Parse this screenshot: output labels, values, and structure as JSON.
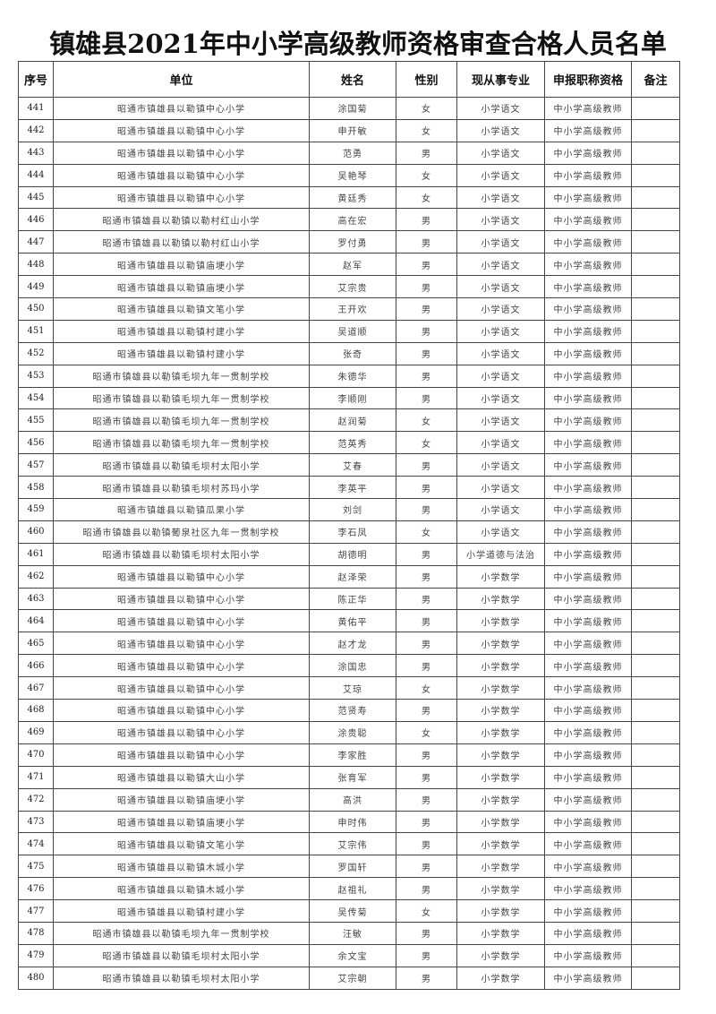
{
  "title": "镇雄县2021年中小学高级教师资格审查合格人员名单",
  "headers": [
    "序号",
    "单位",
    "姓名",
    "性别",
    "现从事专业",
    "申报职称资格",
    "备注"
  ],
  "rows": [
    [
      "441",
      "昭通市镇雄县以勒镇中心小学",
      "涂国菊",
      "女",
      "小学语文",
      "中小学高级教师",
      ""
    ],
    [
      "442",
      "昭通市镇雄县以勒镇中心小学",
      "申开敏",
      "女",
      "小学语文",
      "中小学高级教师",
      ""
    ],
    [
      "443",
      "昭通市镇雄县以勒镇中心小学",
      "范勇",
      "男",
      "小学语文",
      "中小学高级教师",
      ""
    ],
    [
      "444",
      "昭通市镇雄县以勒镇中心小学",
      "吴艳琴",
      "女",
      "小学语文",
      "中小学高级教师",
      ""
    ],
    [
      "445",
      "昭通市镇雄县以勒镇中心小学",
      "黄廷秀",
      "女",
      "小学语文",
      "中小学高级教师",
      ""
    ],
    [
      "446",
      "昭通市镇雄县以勒镇以勒村红山小学",
      "高在宏",
      "男",
      "小学语文",
      "中小学高级教师",
      ""
    ],
    [
      "447",
      "昭通市镇雄县以勒镇以勒村红山小学",
      "罗付勇",
      "男",
      "小学语文",
      "中小学高级教师",
      ""
    ],
    [
      "448",
      "昭通市镇雄县以勒镇庙埂小学",
      "赵军",
      "男",
      "小学语文",
      "中小学高级教师",
      ""
    ],
    [
      "449",
      "昭通市镇雄县以勒镇庙埂小学",
      "艾宗贵",
      "男",
      "小学语文",
      "中小学高级教师",
      ""
    ],
    [
      "450",
      "昭通市镇雄县以勒镇文笔小学",
      "王开欢",
      "男",
      "小学语文",
      "中小学高级教师",
      ""
    ],
    [
      "451",
      "昭通市镇雄县以勒镇村建小学",
      "吴道顺",
      "男",
      "小学语文",
      "中小学高级教师",
      ""
    ],
    [
      "452",
      "昭通市镇雄县以勒镇村建小学",
      "张奇",
      "男",
      "小学语文",
      "中小学高级教师",
      ""
    ],
    [
      "453",
      "昭通市镇雄县以勒镇毛坝九年一贯制学校",
      "朱德华",
      "男",
      "小学语文",
      "中小学高级教师",
      ""
    ],
    [
      "454",
      "昭通市镇雄县以勒镇毛坝九年一贯制学校",
      "李顺刚",
      "男",
      "小学语文",
      "中小学高级教师",
      ""
    ],
    [
      "455",
      "昭通市镇雄县以勒镇毛坝九年一贯制学校",
      "赵润菊",
      "女",
      "小学语文",
      "中小学高级教师",
      ""
    ],
    [
      "456",
      "昭通市镇雄县以勒镇毛坝九年一贯制学校",
      "范英秀",
      "女",
      "小学语文",
      "中小学高级教师",
      ""
    ],
    [
      "457",
      "昭通市镇雄县以勒镇毛坝村太阳小学",
      "艾春",
      "男",
      "小学语文",
      "中小学高级教师",
      ""
    ],
    [
      "458",
      "昭通市镇雄县以勒镇毛坝村苏玛小学",
      "李英平",
      "男",
      "小学语文",
      "中小学高级教师",
      ""
    ],
    [
      "459",
      "昭通市镇雄县以勒镇瓜果小学",
      "刘剑",
      "男",
      "小学语文",
      "中小学高级教师",
      ""
    ],
    [
      "460",
      "昭通市镇雄县以勒镇葡泉社区九年一贯制学校",
      "李石凤",
      "女",
      "小学语文",
      "中小学高级教师",
      ""
    ],
    [
      "461",
      "昭通市镇雄县以勒镇毛坝村太阳小学",
      "胡德明",
      "男",
      "小学道德与法治",
      "中小学高级教师",
      ""
    ],
    [
      "462",
      "昭通市镇雄县以勒镇中心小学",
      "赵泽荣",
      "男",
      "小学数学",
      "中小学高级教师",
      ""
    ],
    [
      "463",
      "昭通市镇雄县以勒镇中心小学",
      "陈正华",
      "男",
      "小学数学",
      "中小学高级教师",
      ""
    ],
    [
      "464",
      "昭通市镇雄县以勒镇中心小学",
      "黄佑平",
      "男",
      "小学数学",
      "中小学高级教师",
      ""
    ],
    [
      "465",
      "昭通市镇雄县以勒镇中心小学",
      "赵才龙",
      "男",
      "小学数学",
      "中小学高级教师",
      ""
    ],
    [
      "466",
      "昭通市镇雄县以勒镇中心小学",
      "涂国忠",
      "男",
      "小学数学",
      "中小学高级教师",
      ""
    ],
    [
      "467",
      "昭通市镇雄县以勒镇中心小学",
      "艾琼",
      "女",
      "小学数学",
      "中小学高级教师",
      ""
    ],
    [
      "468",
      "昭通市镇雄县以勒镇中心小学",
      "范贤寿",
      "男",
      "小学数学",
      "中小学高级教师",
      ""
    ],
    [
      "469",
      "昭通市镇雄县以勒镇中心小学",
      "涂贵聪",
      "女",
      "小学数学",
      "中小学高级教师",
      ""
    ],
    [
      "470",
      "昭通市镇雄县以勒镇中心小学",
      "李家胜",
      "男",
      "小学数学",
      "中小学高级教师",
      ""
    ],
    [
      "471",
      "昭通市镇雄县以勒镇大山小学",
      "张育军",
      "男",
      "小学数学",
      "中小学高级教师",
      ""
    ],
    [
      "472",
      "昭通市镇雄县以勒镇庙埂小学",
      "高洪",
      "男",
      "小学数学",
      "中小学高级教师",
      ""
    ],
    [
      "473",
      "昭通市镇雄县以勒镇庙埂小学",
      "申时伟",
      "男",
      "小学数学",
      "中小学高级教师",
      ""
    ],
    [
      "474",
      "昭通市镇雄县以勒镇文笔小学",
      "艾宗伟",
      "男",
      "小学数学",
      "中小学高级教师",
      ""
    ],
    [
      "475",
      "昭通市镇雄县以勒镇木城小学",
      "罗国轩",
      "男",
      "小学数学",
      "中小学高级教师",
      ""
    ],
    [
      "476",
      "昭通市镇雄县以勒镇木城小学",
      "赵祖礼",
      "男",
      "小学数学",
      "中小学高级教师",
      ""
    ],
    [
      "477",
      "昭通市镇雄县以勒镇村建小学",
      "吴传菊",
      "女",
      "小学数学",
      "中小学高级教师",
      ""
    ],
    [
      "478",
      "昭通市镇雄县以勒镇毛坝九年一贯制学校",
      "汪敏",
      "男",
      "小学数学",
      "中小学高级教师",
      ""
    ],
    [
      "479",
      "昭通市镇雄县以勒镇毛坝村太阳小学",
      "余文宝",
      "男",
      "小学数学",
      "中小学高级教师",
      ""
    ],
    [
      "480",
      "昭通市镇雄县以勒镇毛坝村太阳小学",
      "艾宗朝",
      "男",
      "小学数学",
      "中小学高级教师",
      ""
    ]
  ]
}
